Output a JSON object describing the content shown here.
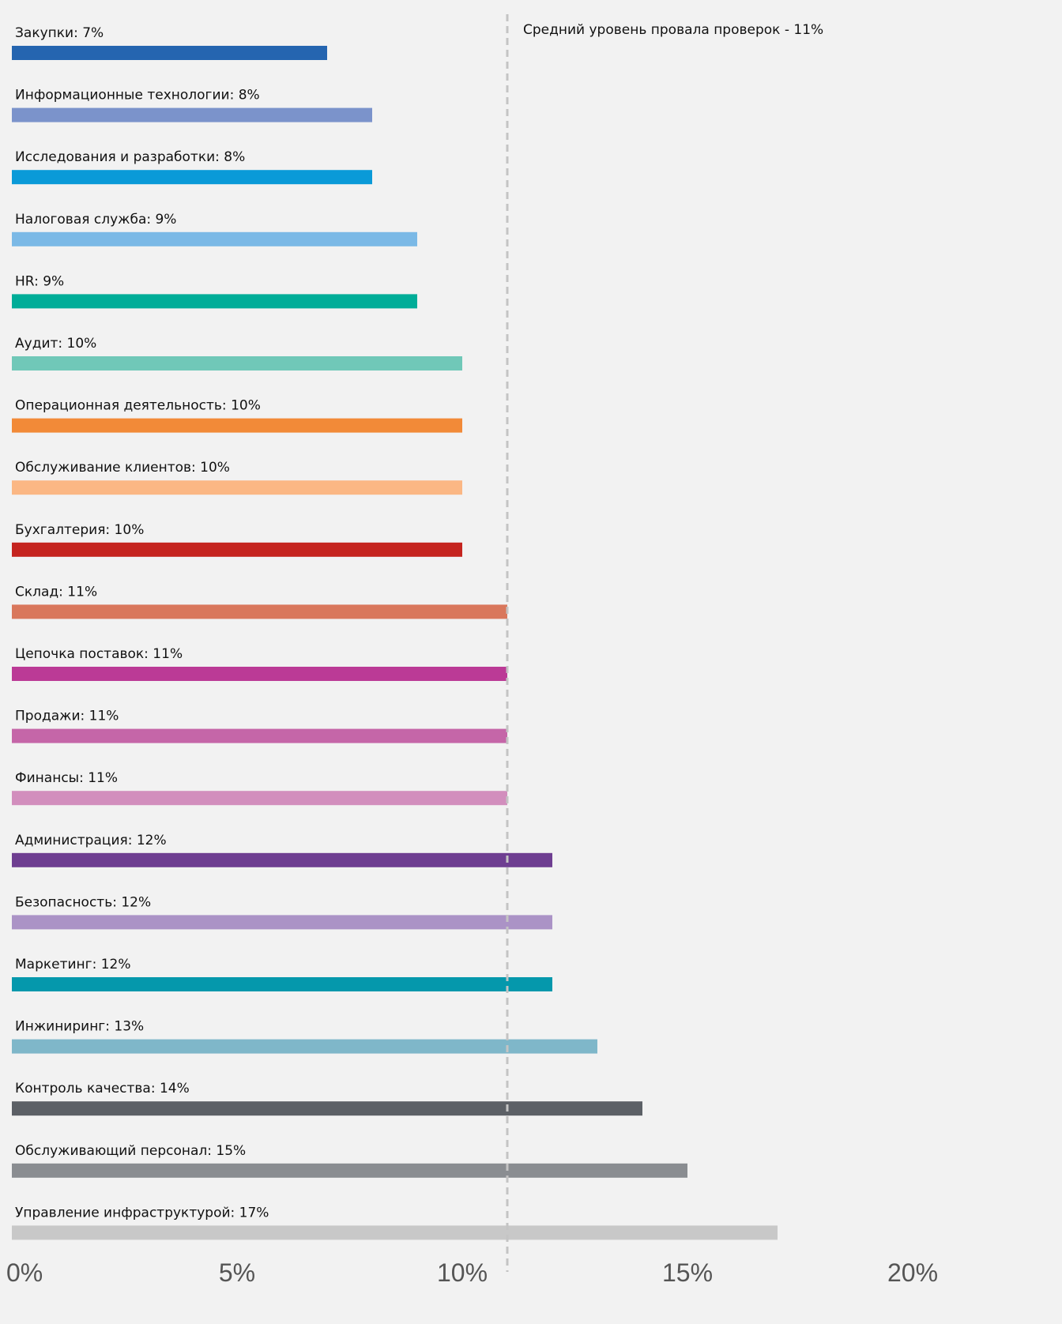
{
  "chart_data": {
    "type": "bar",
    "orientation": "horizontal",
    "x_ticks": [
      "0%",
      "5%",
      "10%",
      "15%",
      "20%"
    ],
    "xlim": [
      0,
      24
    ],
    "average": {
      "value": 11,
      "label": "Средний уровень провала проверок - 11%"
    },
    "grid": false,
    "bars": [
      {
        "label": "Закупки: 7%",
        "value": 7,
        "color": "#2565b0"
      },
      {
        "label": "Информационные технологии: 8%",
        "value": 8,
        "color": "#7b93cb"
      },
      {
        "label": "Исследования и разработки: 8%",
        "value": 8,
        "color": "#0a9ad8"
      },
      {
        "label": "Налоговая служба: 9%",
        "value": 9,
        "color": "#7bb9e6"
      },
      {
        "label": "HR: 9%",
        "value": 9,
        "color": "#00ad98"
      },
      {
        "label": "Аудит: 10%",
        "value": 10,
        "color": "#70c8b8"
      },
      {
        "label": "Операционная деятельность: 10%",
        "value": 10,
        "color": "#f28a38"
      },
      {
        "label": "Обслуживание клиентов: 10%",
        "value": 10,
        "color": "#fbb784"
      },
      {
        "label": "Бухгалтерия: 10%",
        "value": 10,
        "color": "#c5241f"
      },
      {
        "label": "Склад: 11%",
        "value": 11,
        "color": "#d9775c"
      },
      {
        "label": "Цепочка поставок: 11%",
        "value": 11,
        "color": "#bb3a96"
      },
      {
        "label": "Продажи: 11%",
        "value": 11,
        "color": "#c566a8"
      },
      {
        "label": "Финансы: 11%",
        "value": 11,
        "color": "#d28ebd"
      },
      {
        "label": "Администрация: 12%",
        "value": 12,
        "color": "#6e3e91"
      },
      {
        "label": "Безопасность: 12%",
        "value": 12,
        "color": "#ab93c6"
      },
      {
        "label": "Маркетинг: 12%",
        "value": 12,
        "color": "#0598ac"
      },
      {
        "label": "Инжиниринг: 13%",
        "value": 13,
        "color": "#7fb7c9"
      },
      {
        "label": "Контроль качества: 14%",
        "value": 14,
        "color": "#5c6066"
      },
      {
        "label": "Обслуживающий персонал: 15%",
        "value": 15,
        "color": "#8a8d91"
      },
      {
        "label": "Управление инфраструктурой: 17%",
        "value": 17,
        "color": "#c8c8c8"
      }
    ]
  }
}
